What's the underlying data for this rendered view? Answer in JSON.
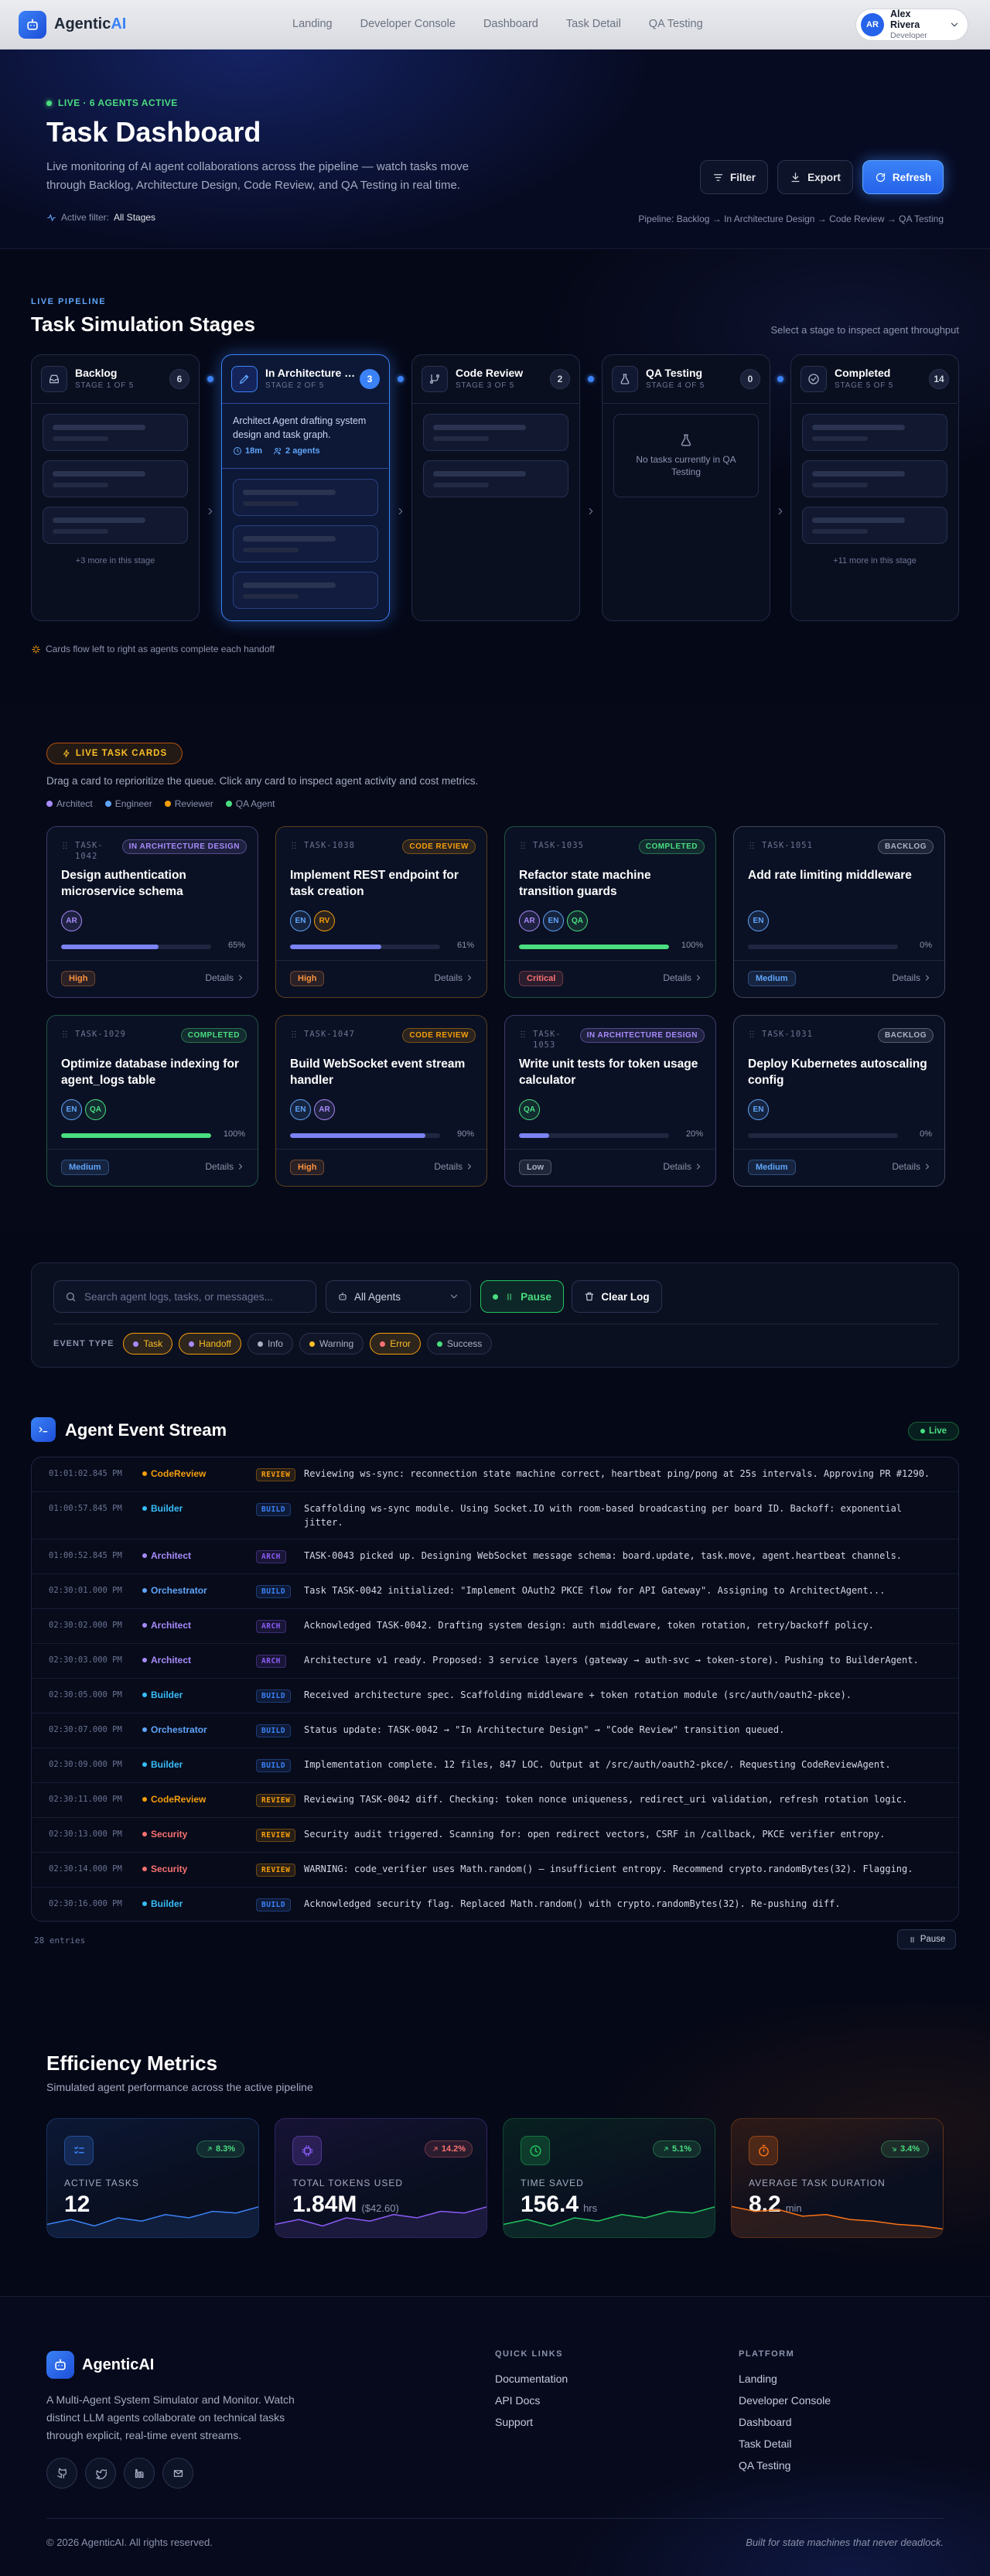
{
  "nav": {
    "brand_prefix": "Agentic",
    "brand_suffix": "AI",
    "links": [
      "Landing",
      "Developer Console",
      "Dashboard",
      "Task Detail",
      "QA Testing"
    ],
    "user": {
      "initials": "AR",
      "name": "Alex Rivera",
      "role": "Developer"
    }
  },
  "hero": {
    "status": "LIVE · 6 AGENTS ACTIVE",
    "title": "Task Dashboard",
    "description": "Live monitoring of AI agent collaborations across the pipeline — watch tasks move through Backlog, Architecture Design, Code Review, and QA Testing in real time.",
    "filter_label": "Active filter:",
    "filter_value": "All Stages",
    "buttons": [
      "Filter",
      "Export",
      "Refresh"
    ],
    "pipeline": "Pipeline: Backlog → In Architecture Design → Code Review → QA Testing"
  },
  "pipeline": {
    "eyebrow": "LIVE PIPELINE",
    "title": "Task Simulation Stages",
    "hint": "Select a stage to inspect agent throughput",
    "stages": [
      {
        "name": "Backlog",
        "step": "STAGE 1 OF 5",
        "count": 6,
        "more": "+3 more in this stage"
      },
      {
        "name": "In Architecture Design",
        "step": "STAGE 2 OF 5",
        "count": 3,
        "description": "Architect Agent drafting system design and task graph.",
        "duration": "18m",
        "agents": "2 agents"
      },
      {
        "name": "Code Review",
        "step": "STAGE 3 OF 5",
        "count": 2
      },
      {
        "name": "QA Testing",
        "step": "STAGE 4 OF 5",
        "count": 0,
        "empty": "No tasks currently in QA Testing"
      },
      {
        "name": "Completed",
        "step": "STAGE 5 OF 5",
        "count": 14,
        "more": "+11 more in this stage"
      }
    ],
    "footnote": "Cards flow left to right as agents complete each handoff"
  },
  "tasks": {
    "badge": "LIVE TASK CARDS",
    "description": "Drag a card to reprioritize the queue. Click any card to inspect agent activity and cost metrics.",
    "legend": [
      {
        "name": "Architect",
        "color": "#a78bfa"
      },
      {
        "name": "Engineer",
        "color": "#60a5fa"
      },
      {
        "name": "Reviewer",
        "color": "#f59e0b"
      },
      {
        "name": "QA Agent",
        "color": "#4ade80"
      }
    ],
    "cards": [
      {
        "id": "TASK-1042",
        "status": "IN ARCHITECTURE DESIGN",
        "status_color": "#a78bfa",
        "title": "Design authentication microservice schema",
        "assignees": [
          {
            "initials": "AR",
            "color": "#a78bfa"
          }
        ],
        "progress": "65%",
        "progress_color": "#7c83f6",
        "priority": "High",
        "priority_color": "#fb923c",
        "action": "Details"
      },
      {
        "id": "TASK-1038",
        "status": "CODE REVIEW",
        "status_color": "#f59e0b",
        "title": "Implement REST endpoint for task creation",
        "assignees": [
          {
            "initials": "EN",
            "color": "#60a5fa"
          },
          {
            "initials": "RV",
            "color": "#f59e0b"
          }
        ],
        "progress": "61%",
        "progress_color": "#7c83f6",
        "priority": "High",
        "priority_color": "#fb923c",
        "action": "Details"
      },
      {
        "id": "TASK-1035",
        "status": "COMPLETED",
        "status_color": "#4ade80",
        "title": "Refactor state machine transition guards",
        "assignees": [
          {
            "initials": "AR",
            "color": "#a78bfa"
          },
          {
            "initials": "EN",
            "color": "#60a5fa"
          },
          {
            "initials": "QA",
            "color": "#4ade80"
          }
        ],
        "progress": "100%",
        "progress_color": "#4ade80",
        "priority": "Critical",
        "priority_color": "#f87171",
        "action": "Details"
      },
      {
        "id": "TASK-1051",
        "status": "BACKLOG",
        "status_color": "#aab2c8",
        "title": "Add rate limiting middleware",
        "assignees": [
          {
            "initials": "EN",
            "color": "#60a5fa"
          }
        ],
        "progress": "0%",
        "progress_color": "#7c83f6",
        "priority": "Medium",
        "priority_color": "#60a5fa",
        "action": "Details"
      },
      {
        "id": "TASK-1029",
        "status": "COMPLETED",
        "status_color": "#4ade80",
        "title": "Optimize database indexing for agent_logs table",
        "assignees": [
          {
            "initials": "EN",
            "color": "#60a5fa"
          },
          {
            "initials": "QA",
            "color": "#4ade80"
          }
        ],
        "progress": "100%",
        "progress_color": "#4ade80",
        "priority": "Medium",
        "priority_color": "#60a5fa",
        "action": "Details"
      },
      {
        "id": "TASK-1047",
        "status": "CODE REVIEW",
        "status_color": "#f59e0b",
        "title": "Build WebSocket event stream handler",
        "assignees": [
          {
            "initials": "EN",
            "color": "#60a5fa"
          },
          {
            "initials": "AR",
            "color": "#a78bfa"
          }
        ],
        "progress": "90%",
        "progress_color": "#7c83f6",
        "priority": "High",
        "priority_color": "#fb923c",
        "action": "Details"
      },
      {
        "id": "TASK-1053",
        "status": "IN ARCHITECTURE DESIGN",
        "status_color": "#a78bfa",
        "title": "Write unit tests for token usage calculator",
        "assignees": [
          {
            "initials": "QA",
            "color": "#4ade80"
          }
        ],
        "progress": "20%",
        "progress_color": "#7c83f6",
        "priority": "Low",
        "priority_color": "#aab2c8",
        "action": "Details"
      },
      {
        "id": "TASK-1031",
        "status": "BACKLOG",
        "status_color": "#aab2c8",
        "title": "Deploy Kubernetes autoscaling config",
        "assignees": [
          {
            "initials": "EN",
            "color": "#60a5fa"
          }
        ],
        "progress": "0%",
        "progress_color": "#7c83f6",
        "priority": "Medium",
        "priority_color": "#60a5fa",
        "action": "Details"
      }
    ]
  },
  "filters": {
    "search_placeholder": "Search agent logs, tasks, or messages...",
    "agent_select": "All Agents",
    "pause": "Pause",
    "clear": "Clear Log",
    "event_type_label": "EVENT TYPE",
    "chips": [
      {
        "label": "Task",
        "color": "#a78bfa",
        "active": true
      },
      {
        "label": "Handoff",
        "color": "#a78bfa",
        "active": true
      },
      {
        "label": "Info",
        "color": "#aab2c8",
        "active": false
      },
      {
        "label": "Warning",
        "color": "#fbbf24",
        "active": false
      },
      {
        "label": "Error",
        "color": "#f87171",
        "active": true
      },
      {
        "label": "Success",
        "color": "#4ade80",
        "active": false
      }
    ]
  },
  "stream": {
    "title": "Agent Event Stream",
    "live": "Live",
    "entries_count": "28 entries",
    "pause": "Pause",
    "event_badges": {
      "REVIEW": "#f59e0b",
      "BUILD": "#3b82f6",
      "ARCH": "#8b5cf6"
    },
    "entries": [
      {
        "time": "01:01:02.845 PM",
        "agent": "CodeReview",
        "agent_color": "#f59e0b",
        "type": "REVIEW",
        "message": "Reviewing ws-sync: reconnection state machine correct, heartbeat ping/pong at 25s intervals. Approving PR #1290."
      },
      {
        "time": "01:00:57.845 PM",
        "agent": "Builder",
        "agent_color": "#38bdf8",
        "type": "BUILD",
        "message": "Scaffolding ws-sync module. Using Socket.IO with room-based broadcasting per board ID. Backoff: exponential jitter."
      },
      {
        "time": "01:00:52.845 PM",
        "agent": "Architect",
        "agent_color": "#a78bfa",
        "type": "ARCH",
        "message": "TASK-0043 picked up. Designing WebSocket message schema: board.update, task.move, agent.heartbeat channels."
      },
      {
        "time": "02:30:01.000 PM",
        "agent": "Orchestrator",
        "agent_color": "#60a5fa",
        "type": "BUILD",
        "message": "Task TASK-0042 initialized: \"Implement OAuth2 PKCE flow for API Gateway\". Assigning to ArchitectAgent..."
      },
      {
        "time": "02:30:02.000 PM",
        "agent": "Architect",
        "agent_color": "#a78bfa",
        "type": "ARCH",
        "message": "Acknowledged TASK-0042. Drafting system design: auth middleware, token rotation, retry/backoff policy."
      },
      {
        "time": "02:30:03.000 PM",
        "agent": "Architect",
        "agent_color": "#a78bfa",
        "type": "ARCH",
        "message": "Architecture v1 ready. Proposed: 3 service layers (gateway → auth-svc → token-store). Pushing to BuilderAgent."
      },
      {
        "time": "02:30:05.000 PM",
        "agent": "Builder",
        "agent_color": "#38bdf8",
        "type": "BUILD",
        "message": "Received architecture spec. Scaffolding middleware + token rotation module (src/auth/oauth2-pkce)."
      },
      {
        "time": "02:30:07.000 PM",
        "agent": "Orchestrator",
        "agent_color": "#60a5fa",
        "type": "BUILD",
        "message": "Status update: TASK-0042 → \"In Architecture Design\" → \"Code Review\" transition queued."
      },
      {
        "time": "02:30:09.000 PM",
        "agent": "Builder",
        "agent_color": "#38bdf8",
        "type": "BUILD",
        "message": "Implementation complete. 12 files, 847 LOC. Output at /src/auth/oauth2-pkce/. Requesting CodeReviewAgent."
      },
      {
        "time": "02:30:11.000 PM",
        "agent": "CodeReview",
        "agent_color": "#f59e0b",
        "type": "REVIEW",
        "message": "Reviewing TASK-0042 diff. Checking: token nonce uniqueness, redirect_uri validation, refresh rotation logic."
      },
      {
        "time": "02:30:13.000 PM",
        "agent": "Security",
        "agent_color": "#f87171",
        "type": "REVIEW",
        "message": "Security audit triggered. Scanning for: open redirect vectors, CSRF in /callback, PKCE verifier entropy."
      },
      {
        "time": "02:30:14.000 PM",
        "agent": "Security",
        "agent_color": "#f87171",
        "type": "REVIEW",
        "message": "WARNING: code_verifier uses Math.random() — insufficient entropy. Recommend crypto.randomBytes(32). Flagging."
      },
      {
        "time": "02:30:16.000 PM",
        "agent": "Builder",
        "agent_color": "#38bdf8",
        "type": "BUILD",
        "message": "Acknowledged security flag. Replaced Math.random() with crypto.randomBytes(32). Re-pushing diff."
      }
    ]
  },
  "metrics": {
    "title": "Efficiency Metrics",
    "subtitle": "Simulated agent performance across the active pipeline",
    "cards": [
      {
        "label": "ACTIVE TASKS",
        "value": "12",
        "change": "8.3%",
        "trend": "up",
        "color": "#3b82f6",
        "change_color": "#4ade80"
      },
      {
        "label": "TOTAL TOKENS USED",
        "value": "1.84M",
        "unit": "($42.60)",
        "change": "14.2%",
        "trend": "up",
        "color": "#8b5cf6",
        "change_color": "#f87171"
      },
      {
        "label": "TIME SAVED",
        "value": "156.4",
        "unit": "hrs",
        "change": "5.1%",
        "trend": "up",
        "color": "#22c55e",
        "change_color": "#4ade80"
      },
      {
        "label": "AVERAGE TASK DURATION",
        "value": "8.2",
        "unit": "min",
        "change": "3.4%",
        "trend": "down",
        "color": "#f97316",
        "change_color": "#4ade80"
      }
    ]
  },
  "footer": {
    "brand": "AgenticAI",
    "description": "A Multi-Agent System Simulator and Monitor. Watch distinct LLM agents collaborate on technical tasks through explicit, real-time event streams.",
    "columns": [
      {
        "title": "QUICK LINKS",
        "links": [
          "Documentation",
          "API Docs",
          "Support"
        ]
      },
      {
        "title": "PLATFORM",
        "links": [
          "Landing",
          "Developer Console",
          "Dashboard",
          "Task Detail",
          "QA Testing"
        ]
      }
    ],
    "copyright": "© 2026 AgenticAI. All rights reserved.",
    "tagline": "Built for state machines that never deadlock."
  }
}
